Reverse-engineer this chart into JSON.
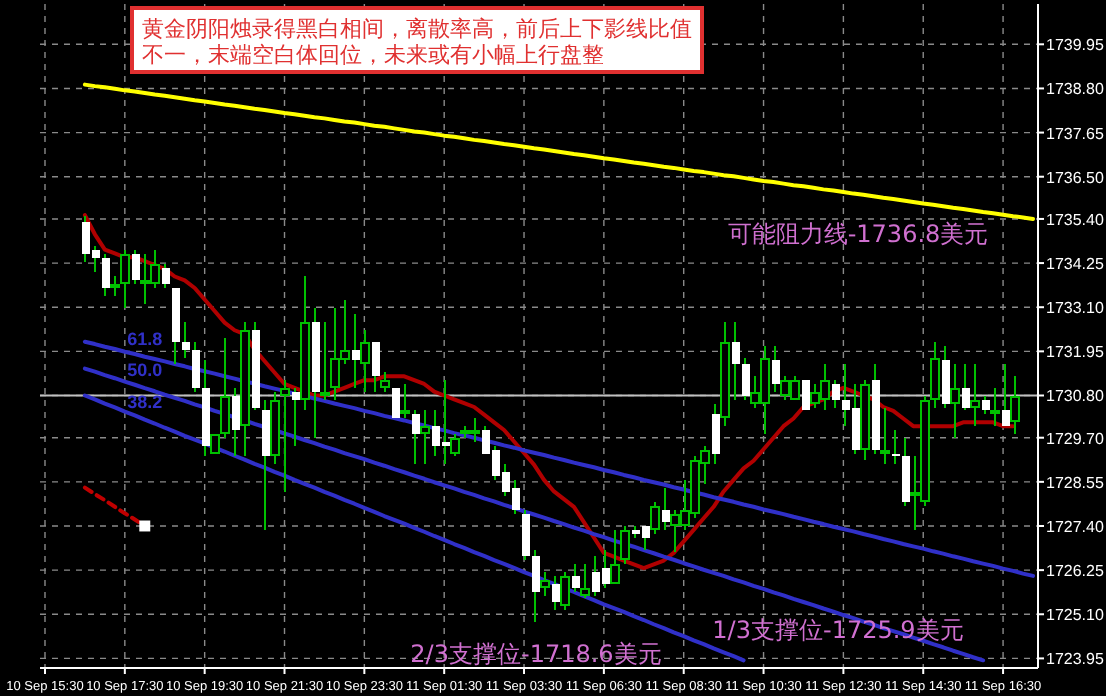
{
  "chart_data": {
    "type": "candlestick",
    "ylim": [
      1723.7,
      1741.0
    ],
    "grid": true,
    "legend": "left",
    "categories": [
      "10 Sep 15:30",
      null,
      null,
      null,
      null,
      null,
      null,
      null,
      "10 Sep 17:30",
      null,
      null,
      null,
      null,
      null,
      null,
      null,
      "10 Sep 19:30",
      null,
      null,
      null,
      null,
      null,
      null,
      null,
      "10 Sep 21:30",
      null,
      null,
      null,
      null,
      null,
      null,
      null,
      "10 Sep 23:30",
      null,
      null,
      null,
      null,
      null,
      null,
      null,
      "11 Sep 01:30",
      null,
      null,
      null,
      null,
      null,
      null,
      null,
      "11 Sep 03:30",
      null,
      null,
      null,
      null,
      null,
      null,
      null,
      "11 Sep 06:30",
      null,
      null,
      null,
      null,
      null,
      null,
      null,
      "11 Sep 08:30",
      null,
      null,
      null,
      null,
      null,
      null,
      null,
      "11 Sep 10:30",
      null,
      null,
      null,
      null,
      null,
      null,
      null,
      "11 Sep 12:30",
      null,
      null,
      null,
      null,
      null,
      null,
      null,
      "11 Sep 14:30",
      null,
      null,
      null,
      null,
      null,
      null,
      null,
      "11 Sep 16:30",
      null,
      null,
      null
    ],
    "yticks": [
      1723.95,
      {
        "value": 1725.1,
        "label": "1725.10"
      },
      1726.25,
      {
        "value": 1727.4,
        "label": "1727.40"
      },
      1728.55,
      {
        "value": 1729.7,
        "label": "1729.70"
      },
      {
        "value": 1730.8,
        "label": "1730.80"
      },
      1731.95,
      {
        "value": 1733.1,
        "label": "1733.10"
      },
      1734.25,
      {
        "value": 1735.4,
        "label": "1735.40"
      },
      {
        "value": 1736.5,
        "label": "1736.50"
      },
      1737.65,
      {
        "value": 1738.8,
        "label": "1738.80"
      },
      1739.95
    ],
    "ref_lines": [
      {
        "axis": "y",
        "value": 1730.8,
        "color": "#c0c0c0"
      }
    ],
    "annotations": [
      "黄金阴阳烛录得黑白相间，离散率高，前后上下影线比值不一，末端空白体回位，未来或有小幅上行盘整",
      "可能阻力线-1736.8美元",
      "1/3支撑位-1725.9美元",
      "2/3支撑位-1718.6美元"
    ],
    "color": "#00c000",
    "colors": [
      null,
      null,
      null,
      null,
      "#ffffff",
      "#ffffff",
      "#ffffff",
      "#00c000",
      "#00c000",
      "#ffffff",
      "#00c000",
      "#00c000",
      "#ffffff",
      "#ffffff",
      "#ffffff",
      "#ffffff",
      "#ffffff",
      "#00c000",
      "#00c000",
      "#ffffff",
      "#00c000",
      "#ffffff",
      "#ffffff",
      "#00c000",
      "#00c000",
      "#ffffff",
      "#00c000",
      "#ffffff",
      "#00c000",
      "#00c000",
      "#00c000",
      "#ffffff",
      "#00c000",
      "#ffffff",
      "#00c000",
      "#ffffff",
      "#00c000",
      "#ffffff",
      "#00c000",
      "#ffffff",
      "#ffffff",
      "#00c000",
      "#00c000",
      "#00c000",
      "#ffffff",
      "#ffffff",
      "#ffffff",
      "#ffffff",
      "#ffffff",
      "#ffffff",
      "#00c000",
      "#ffffff",
      "#00c000",
      "#ffffff",
      "#00c000",
      "#ffffff",
      "#ffffff",
      "#00c000",
      "#00c000",
      "#ffffff",
      "#ffffff",
      "#00c000",
      "#ffffff",
      "#00c000",
      "#00c000",
      "#00c000",
      "#00c000",
      "#ffffff",
      "#00c000",
      "#ffffff",
      "#ffffff",
      "#00c000",
      "#00c000",
      "#ffffff",
      "#00c000",
      "#00c000",
      "#ffffff",
      "#00c000",
      "#00c000",
      "#ffffff",
      "#ffffff",
      "#ffffff",
      "#00c000",
      "#ffffff",
      "#00c000",
      "#ffffff",
      "#ffffff",
      "#00c000",
      "#00c000",
      "#00c000",
      "#ffffff",
      "#00c000",
      "#ffffff",
      "#00c000",
      "#ffffff",
      "#00c000",
      "#ffffff",
      "#00c000",
      null,
      null
    ],
    "ohlc": [
      null,
      null,
      null,
      null,
      [
        1735.3,
        1735.5,
        1734.3,
        1734.5
      ],
      [
        1734.6,
        1734.7,
        1734.0,
        1734.4
      ],
      [
        1734.4,
        1734.5,
        1733.4,
        1733.6
      ],
      [
        1733.6,
        1733.9,
        1733.4,
        1733.7
      ],
      [
        1733.7,
        1734.6,
        1733.1,
        1734.5
      ],
      [
        1734.5,
        1734.6,
        1733.7,
        1733.8
      ],
      [
        1733.7,
        1734.5,
        1733.2,
        1733.8
      ],
      [
        1733.7,
        1734.6,
        1733.6,
        1734.2
      ],
      [
        1734.1,
        1734.2,
        1733.6,
        1733.7
      ],
      [
        1733.6,
        1733.6,
        1731.6,
        1732.2
      ],
      [
        1732.2,
        1732.7,
        1731.8,
        1732.0
      ],
      [
        1732.0,
        1732.2,
        1730.9,
        1731.0
      ],
      [
        1731.0,
        1731.7,
        1729.2,
        1729.5
      ],
      [
        1729.3,
        1729.8,
        1729.3,
        1729.8
      ],
      [
        1729.8,
        1732.3,
        1729.7,
        1730.8
      ],
      [
        1730.8,
        1731.0,
        1729.2,
        1729.9
      ],
      [
        1730.0,
        1732.7,
        1729.2,
        1732.5
      ],
      [
        1732.5,
        1732.7,
        1730.4,
        1730.5
      ],
      [
        1730.4,
        1730.7,
        1727.3,
        1729.2
      ],
      [
        1729.2,
        1730.9,
        1729.0,
        1730.7
      ],
      [
        1730.8,
        1731.2,
        1728.3,
        1731.0
      ],
      [
        1730.9,
        1731.0,
        1729.5,
        1730.7
      ],
      [
        1730.7,
        1733.9,
        1730.4,
        1732.7
      ],
      [
        1732.7,
        1733.1,
        1729.7,
        1730.9
      ],
      [
        1730.8,
        1732.7,
        1730.7,
        1730.9
      ],
      [
        1731.0,
        1733.1,
        1730.7,
        1731.8
      ],
      [
        1731.7,
        1733.3,
        1731.6,
        1732.0
      ],
      [
        1732.0,
        1732.9,
        1731.0,
        1731.7
      ],
      [
        1731.6,
        1732.5,
        1730.9,
        1732.2
      ],
      [
        1732.2,
        1732.2,
        1730.9,
        1731.3
      ],
      [
        1731.0,
        1731.4,
        1730.9,
        1731.2
      ],
      [
        1731.0,
        1731.0,
        1730.2,
        1730.2
      ],
      [
        1730.3,
        1731.1,
        1730.2,
        1730.4
      ],
      [
        1730.3,
        1730.4,
        1729.0,
        1729.8
      ],
      [
        1729.8,
        1730.4,
        1729.0,
        1730.0
      ],
      [
        1730.0,
        1730.4,
        1729.2,
        1729.5
      ],
      [
        1729.6,
        1731.2,
        1729.0,
        1729.5
      ],
      [
        1729.3,
        1729.8,
        1729.2,
        1729.7
      ],
      [
        1729.8,
        1730.0,
        1729.7,
        1729.9
      ],
      [
        1729.8,
        1730.2,
        1729.6,
        1729.9
      ],
      [
        1729.9,
        1730.0,
        1729.3,
        1729.3
      ],
      [
        1729.4,
        1729.5,
        1728.6,
        1728.7
      ],
      [
        1728.8,
        1729.0,
        1728.2,
        1728.3
      ],
      [
        1728.4,
        1728.6,
        1727.7,
        1727.8
      ],
      [
        1727.7,
        1727.8,
        1726.5,
        1726.6
      ],
      [
        1726.6,
        1726.8,
        1724.9,
        1725.7
      ],
      [
        1725.8,
        1726.2,
        1725.6,
        1726.0
      ],
      [
        1725.9,
        1726.1,
        1725.2,
        1725.4
      ],
      [
        1725.3,
        1726.2,
        1725.2,
        1726.1
      ],
      [
        1726.1,
        1726.4,
        1725.7,
        1725.8
      ],
      [
        1725.6,
        1726.4,
        1725.5,
        1725.8
      ],
      [
        1726.2,
        1726.6,
        1725.6,
        1725.7
      ],
      [
        1726.3,
        1726.8,
        1725.8,
        1725.9
      ],
      [
        1725.9,
        1727.3,
        1725.9,
        1726.4
      ],
      [
        1726.5,
        1727.4,
        1726.4,
        1727.3
      ],
      [
        1727.3,
        1727.4,
        1727.1,
        1727.2
      ],
      [
        1727.4,
        1727.4,
        1726.8,
        1727.1
      ],
      [
        1727.3,
        1728.0,
        1727.2,
        1727.9
      ],
      [
        1727.8,
        1728.4,
        1727.3,
        1727.5
      ],
      [
        1727.4,
        1727.8,
        1726.7,
        1727.7
      ],
      [
        1727.4,
        1728.6,
        1727.3,
        1727.8
      ],
      [
        1727.7,
        1729.2,
        1727.6,
        1729.1
      ],
      [
        1729.0,
        1729.5,
        1728.5,
        1729.4
      ],
      [
        1730.3,
        1730.6,
        1729.0,
        1729.3
      ],
      [
        1730.2,
        1732.7,
        1730.0,
        1732.2
      ],
      [
        1732.2,
        1732.7,
        1730.7,
        1731.6
      ],
      [
        1731.6,
        1731.8,
        1730.7,
        1730.8
      ],
      [
        1730.6,
        1731.3,
        1730.5,
        1730.9
      ],
      [
        1730.6,
        1732.1,
        1729.8,
        1731.8
      ],
      [
        1731.7,
        1732.1,
        1730.9,
        1731.1
      ],
      [
        1730.8,
        1731.3,
        1730.7,
        1731.2
      ],
      [
        1730.7,
        1731.3,
        1730.7,
        1731.2
      ],
      [
        1731.2,
        1731.2,
        1730.4,
        1730.4
      ],
      [
        1730.6,
        1731.1,
        1730.5,
        1730.9
      ],
      [
        1730.7,
        1731.6,
        1730.4,
        1731.2
      ],
      [
        1731.1,
        1731.2,
        1730.5,
        1730.7
      ],
      [
        1730.7,
        1731.6,
        1730.0,
        1730.4
      ],
      [
        1730.5,
        1731.1,
        1729.3,
        1729.4
      ],
      [
        1729.4,
        1731.2,
        1729.1,
        1731.1
      ],
      [
        1731.2,
        1731.6,
        1729.3,
        1729.4
      ],
      [
        1729.3,
        1730.5,
        1729.0,
        1729.4
      ],
      [
        1729.3,
        1729.9,
        1729.0,
        1729.2
      ],
      [
        1729.2,
        1729.7,
        1727.9,
        1728.0
      ],
      [
        1728.2,
        1729.2,
        1727.3,
        1728.3
      ],
      [
        1728.0,
        1730.8,
        1727.9,
        1730.7
      ],
      [
        1730.7,
        1732.2,
        1730.5,
        1731.8
      ],
      [
        1731.7,
        1732.1,
        1730.5,
        1730.6
      ],
      [
        1730.6,
        1731.6,
        1729.7,
        1731.0
      ],
      [
        1731.0,
        1731.6,
        1730.4,
        1730.5
      ],
      [
        1730.5,
        1731.6,
        1730.0,
        1730.7
      ],
      [
        1730.7,
        1730.8,
        1730.3,
        1730.4
      ],
      [
        1730.3,
        1731.0,
        1730.0,
        1730.4
      ],
      [
        1730.4,
        1731.6,
        1730.0,
        1730.0
      ],
      [
        1730.1,
        1731.3,
        1729.8,
        1730.8
      ],
      null,
      null
    ],
    "series": [
      {
        "type": "line",
        "color": "#b00000",
        "marker": "none",
        "line_style": "solid",
        "values": [
          null,
          null,
          null,
          null,
          1735.5,
          1735.0,
          1734.6,
          1734.5,
          1734.4,
          1734.4,
          1734.3,
          1734.2,
          1734.1,
          1733.9,
          1733.8,
          1733.6,
          1733.3,
          1733.0,
          1732.7,
          1732.5,
          1732.4,
          1732.0,
          1731.7,
          1731.4,
          1731.1,
          1731.0,
          1730.9,
          1730.8,
          1730.8,
          1730.9,
          1731.0,
          1731.1,
          1731.2,
          1731.2,
          1731.3,
          1731.3,
          1731.3,
          1731.2,
          1731.1,
          1730.9,
          1730.8,
          1730.7,
          1730.6,
          1730.5,
          1730.3,
          1730.1,
          1729.9,
          1729.6,
          1729.3,
          1729.0,
          1728.6,
          1728.3,
          1728.1,
          1727.9,
          1727.5,
          1727.1,
          1726.7,
          1726.6,
          1726.5,
          1726.4,
          1726.3,
          1726.4,
          1726.5,
          1726.7,
          1727.0,
          1727.3,
          1727.6,
          1727.9,
          1728.3,
          1728.6,
          1728.9,
          1729.1,
          1729.4,
          1729.7,
          1730.0,
          1730.2,
          1730.5,
          1730.6,
          1730.7,
          1730.9,
          1731.0,
          1730.9,
          1730.8,
          1730.7,
          1730.5,
          1730.4,
          1730.2,
          1730.0,
          1730.0,
          1730.0,
          1730.0,
          1730.0,
          1730.1,
          1730.1,
          1730.1,
          1730.1,
          1730.0,
          1730.0,
          null,
          null
        ]
      },
      {
        "type": "line",
        "color": "#ffff00",
        "marker": "none",
        "line_style": "solid",
        "values": [
          null,
          null,
          null,
          null,
          1738.9,
          1738.86,
          1738.83,
          1738.79,
          1738.75,
          1738.72,
          1738.68,
          1738.64,
          1738.61,
          1738.57,
          1738.53,
          1738.49,
          1738.46,
          1738.42,
          1738.38,
          1738.35,
          1738.31,
          1738.27,
          1738.24,
          1738.2,
          1738.16,
          1738.13,
          1738.09,
          1738.05,
          1738.02,
          1737.98,
          1737.94,
          1737.91,
          1737.87,
          1737.83,
          1737.8,
          1737.76,
          1737.72,
          1737.68,
          1737.65,
          1737.61,
          1737.57,
          1737.54,
          1737.5,
          1737.46,
          1737.43,
          1737.39,
          1737.35,
          1737.32,
          1737.28,
          1737.24,
          1737.21,
          1737.17,
          1737.13,
          1737.09,
          1737.06,
          1737.02,
          1736.98,
          1736.95,
          1736.91,
          1736.87,
          1736.84,
          1736.8,
          1736.76,
          1736.73,
          1736.69,
          1736.65,
          1736.62,
          1736.58,
          1736.54,
          1736.51,
          1736.47,
          1736.43,
          1736.39,
          1736.36,
          1736.32,
          1736.28,
          1736.25,
          1736.21,
          1736.17,
          1736.14,
          1736.1,
          1736.06,
          1736.03,
          1735.99,
          1735.95,
          1735.92,
          1735.88,
          1735.84,
          1735.8,
          1735.77,
          1735.73,
          1735.69,
          1735.66,
          1735.62,
          1735.58,
          1735.55,
          1735.51,
          1735.47,
          1735.44,
          1735.4
        ]
      },
      {
        "type": "line",
        "name": "61.8",
        "color": "#3030c8",
        "marker": "none",
        "line_style": "solid",
        "values": [
          null,
          null,
          null,
          null,
          1732.2,
          1732.14,
          1732.07,
          1732.01,
          1731.94,
          1731.88,
          1731.81,
          1731.75,
          1731.69,
          1731.62,
          1731.56,
          1731.49,
          1731.43,
          1731.37,
          1731.3,
          1731.24,
          1731.17,
          1731.11,
          1731.04,
          1730.98,
          1730.92,
          1730.85,
          1730.79,
          1730.72,
          1730.66,
          1730.59,
          1730.53,
          1730.47,
          1730.4,
          1730.34,
          1730.27,
          1730.21,
          1730.15,
          1730.08,
          1730.02,
          1729.95,
          1729.89,
          1729.82,
          1729.76,
          1729.7,
          1729.63,
          1729.57,
          1729.5,
          1729.44,
          1729.37,
          1729.31,
          1729.25,
          1729.18,
          1729.12,
          1729.05,
          1728.99,
          1728.93,
          1728.86,
          1728.8,
          1728.73,
          1728.67,
          1728.6,
          1728.54,
          1728.48,
          1728.41,
          1728.35,
          1728.28,
          1728.22,
          1728.15,
          1728.09,
          1728.03,
          1727.96,
          1727.9,
          1727.83,
          1727.77,
          1727.71,
          1727.64,
          1727.58,
          1727.51,
          1727.45,
          1727.38,
          1727.32,
          1727.26,
          1727.19,
          1727.13,
          1727.06,
          1727.0,
          1726.93,
          1726.87,
          1726.81,
          1726.74,
          1726.68,
          1726.61,
          1726.55,
          1726.48,
          1726.42,
          1726.36,
          1726.29,
          1726.23,
          1726.16,
          1726.1
        ]
      },
      {
        "type": "line",
        "name": "50.0",
        "color": "#3030c8",
        "marker": "none",
        "line_style": "solid",
        "values": [
          null,
          null,
          null,
          null,
          1731.5,
          1731.42,
          1731.33,
          1731.25,
          1731.16,
          1731.08,
          1730.99,
          1730.91,
          1730.82,
          1730.74,
          1730.66,
          1730.57,
          1730.49,
          1730.4,
          1730.32,
          1730.23,
          1730.15,
          1730.06,
          1729.98,
          1729.9,
          1729.81,
          1729.73,
          1729.64,
          1729.56,
          1729.47,
          1729.39,
          1729.3,
          1729.22,
          1729.14,
          1729.05,
          1728.97,
          1728.88,
          1728.8,
          1728.71,
          1728.63,
          1728.54,
          1728.46,
          1728.38,
          1728.29,
          1728.21,
          1728.12,
          1728.04,
          1727.95,
          1727.87,
          1727.78,
          1727.7,
          1727.62,
          1727.53,
          1727.45,
          1727.36,
          1727.28,
          1727.19,
          1727.11,
          1727.02,
          1726.94,
          1726.86,
          1726.77,
          1726.69,
          1726.6,
          1726.52,
          1726.43,
          1726.35,
          1726.26,
          1726.18,
          1726.1,
          1726.01,
          1725.93,
          1725.84,
          1725.76,
          1725.67,
          1725.59,
          1725.5,
          1725.42,
          1725.34,
          1725.25,
          1725.17,
          1725.08,
          1725.0,
          1724.91,
          1724.83,
          1724.74,
          1724.66,
          1724.58,
          1724.49,
          1724.41,
          1724.32,
          1724.24,
          1724.15,
          1724.07,
          1723.98,
          1723.9,
          null,
          null,
          null,
          null,
          null
        ]
      },
      {
        "type": "line",
        "name": "38.2",
        "color": "#3030c8",
        "marker": "none",
        "line_style": "solid",
        "values": [
          null,
          null,
          null,
          null,
          1730.8,
          1730.7,
          1730.59,
          1730.49,
          1730.38,
          1730.28,
          1730.17,
          1730.07,
          1729.96,
          1729.86,
          1729.75,
          1729.65,
          1729.55,
          1729.44,
          1729.34,
          1729.23,
          1729.13,
          1729.02,
          1728.92,
          1728.81,
          1728.71,
          1728.6,
          1728.5,
          1728.4,
          1728.29,
          1728.19,
          1728.08,
          1727.98,
          1727.87,
          1727.77,
          1727.66,
          1727.56,
          1727.46,
          1727.35,
          1727.25,
          1727.14,
          1727.04,
          1726.93,
          1726.83,
          1726.72,
          1726.62,
          1726.51,
          1726.41,
          1726.31,
          1726.2,
          1726.1,
          1725.99,
          1725.89,
          1725.78,
          1725.68,
          1725.57,
          1725.47,
          1725.36,
          1725.26,
          1725.16,
          1725.05,
          1724.95,
          1724.84,
          1724.74,
          1724.63,
          1724.53,
          1724.42,
          1724.32,
          1724.21,
          1724.11,
          1724.01,
          1723.9,
          null,
          null,
          null,
          null,
          null,
          null,
          null,
          null,
          null,
          null,
          null,
          null,
          null,
          null,
          null,
          null,
          null,
          null,
          null,
          null,
          null,
          null,
          null,
          null,
          null,
          null,
          null,
          null,
          null
        ]
      },
      {
        "type": "line",
        "color": "#c00000",
        "marker": "none",
        "line_style": "dashed",
        "values": [
          null,
          null,
          null,
          null,
          1728.4,
          1728.23,
          1728.07,
          1727.9,
          1727.73,
          1727.57,
          1727.4,
          null,
          null,
          null,
          null,
          null,
          null,
          null,
          null,
          null,
          null,
          null,
          null,
          null,
          null,
          null,
          null,
          null,
          null,
          null,
          null,
          null,
          null,
          null,
          null,
          null,
          null,
          null,
          null,
          null,
          null,
          null,
          null,
          null,
          null,
          null,
          null,
          null,
          null,
          null,
          null,
          null,
          null,
          null,
          null,
          null,
          null,
          null,
          null,
          null,
          null,
          null,
          null,
          null,
          null,
          null,
          null,
          null,
          null,
          null,
          null,
          null,
          null,
          null,
          null,
          null,
          null,
          null,
          null,
          null,
          null,
          null,
          null,
          null,
          null,
          null,
          null,
          null,
          null,
          null,
          null,
          null,
          null,
          null,
          null,
          null,
          null,
          null,
          null,
          null
        ]
      },
      {
        "type": "scatter",
        "color": "#ffffff",
        "marker": "square",
        "values": [
          null,
          null,
          null,
          null,
          null,
          null,
          null,
          null,
          null,
          null,
          1727.4,
          null,
          null,
          null,
          null,
          null,
          null,
          null,
          null,
          null,
          null,
          null,
          null,
          null,
          null,
          null,
          null,
          null,
          null,
          null,
          null,
          null,
          null,
          null,
          null,
          null,
          null,
          null,
          null,
          null,
          null,
          null,
          null,
          null,
          null,
          null,
          null,
          null,
          null,
          null,
          null,
          null,
          null,
          null,
          null,
          null,
          null,
          null,
          null,
          null,
          null,
          null,
          null,
          null,
          null,
          null,
          null,
          null,
          null,
          null,
          null,
          null,
          null,
          null,
          null,
          null,
          null,
          null,
          null,
          null,
          null,
          null,
          null,
          null,
          null,
          null,
          null,
          null,
          null,
          null,
          null,
          null,
          null,
          null,
          null,
          null,
          null,
          null,
          null,
          null
        ]
      }
    ]
  }
}
